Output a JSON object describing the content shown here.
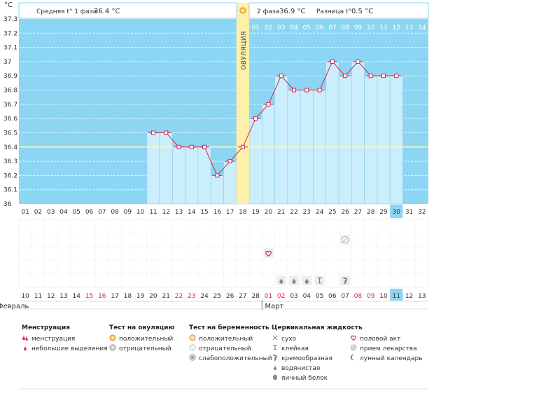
{
  "chart_data": {
    "type": "line",
    "unit_label": "°C",
    "y_ticks": [
      "37.3",
      "37.2",
      "37.1",
      "37",
      "36.9",
      "36.8",
      "36.7",
      "36.6",
      "36.5",
      "36.4",
      "36.3",
      "36.2",
      "36.1",
      "36"
    ],
    "ylim": [
      36.0,
      37.3
    ],
    "avg_phase1_temp": 36.4,
    "cycle_days": [
      "01",
      "02",
      "03",
      "04",
      "05",
      "06",
      "07",
      "08",
      "09",
      "10",
      "11",
      "12",
      "13",
      "14",
      "15",
      "16",
      "17",
      "18",
      "19",
      "20",
      "21",
      "22",
      "23",
      "24",
      "25",
      "26",
      "27",
      "28",
      "29",
      "30",
      "31",
      "32"
    ],
    "temperatures": [
      null,
      null,
      null,
      null,
      null,
      null,
      null,
      null,
      null,
      null,
      36.5,
      36.5,
      36.4,
      36.4,
      36.4,
      36.2,
      36.3,
      36.4,
      36.6,
      36.7,
      36.9,
      36.8,
      36.8,
      36.8,
      37.0,
      36.9,
      37.0,
      36.9,
      36.9,
      36.9,
      null,
      null
    ],
    "ovulation_day_index": 17,
    "phase2_days": [
      "01",
      "02",
      "03",
      "04",
      "05",
      "06",
      "07",
      "08",
      "09",
      "10",
      "11",
      "12",
      "13",
      "14"
    ],
    "highlight_day_index": 29,
    "dates": [
      "10",
      "11",
      "12",
      "13",
      "14",
      "15",
      "16",
      "17",
      "18",
      "19",
      "20",
      "21",
      "22",
      "23",
      "24",
      "25",
      "26",
      "27",
      "28",
      "01",
      "02",
      "03",
      "04",
      "05",
      "06",
      "07",
      "08",
      "09",
      "10",
      "11",
      "12",
      "13"
    ],
    "red_date_indices": [
      5,
      6,
      12,
      13,
      19,
      20,
      26,
      27
    ],
    "months": [
      {
        "name": "Февраль",
        "start_index": 0
      },
      {
        "name": "Март",
        "start_index": 19
      }
    ],
    "markers": [
      {
        "day_index": 19,
        "row": 2,
        "kind": "heart"
      },
      {
        "day_index": 25,
        "row": 1,
        "kind": "pill"
      },
      {
        "day_index": 20,
        "row": 4,
        "kind": "drop"
      },
      {
        "day_index": 21,
        "row": 4,
        "kind": "drop"
      },
      {
        "day_index": 22,
        "row": 4,
        "kind": "drop"
      },
      {
        "day_index": 23,
        "row": 4,
        "kind": "sticky"
      },
      {
        "day_index": 25,
        "row": 4,
        "kind": "creamy"
      }
    ]
  },
  "header": {
    "phase1_label": "Средняя t° 1 фаза",
    "phase1_value": "36.4 °C",
    "phase2_label": "2 фаза",
    "phase2_value": "36.9 °C",
    "diff_label": "Разница t°",
    "diff_value": "0.5 °C",
    "ovulation_label": "ОВУЛЯЦИЯ"
  },
  "legend": {
    "menstruation": {
      "title": "Менструация",
      "items": [
        "менструация",
        "небольшие выделения"
      ]
    },
    "ovulation_test": {
      "title": "Тест на овуляцию",
      "items": [
        "положительный",
        "отрицательный"
      ]
    },
    "pregnancy_test": {
      "title": "Тест на беременность",
      "items": [
        "положительный",
        "отрицательный",
        "слабоположительный"
      ]
    },
    "cervical": {
      "title": "Цервикальная жидкость",
      "items": [
        "сухо",
        "клейкая",
        "кремообразная",
        "водянистая",
        "яичный белок"
      ]
    },
    "other": {
      "items": [
        "половой акт",
        "прием лекарства",
        "лунный календарь"
      ]
    }
  },
  "colors": {
    "plot_bg": "#8dd6f3",
    "bar_fill": "#cbeefc",
    "bar_stroke": "#8fcbe6",
    "line": "#d2254f",
    "ovulation": "#fdf0a8",
    "highlight": "#8dd6f3",
    "red_text": "#d2254f"
  }
}
